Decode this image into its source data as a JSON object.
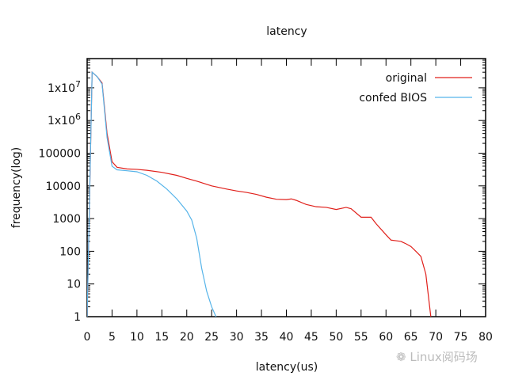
{
  "chart_data": {
    "type": "line",
    "title": "latency",
    "xlabel": "latency(us)",
    "ylabel": "frequency(log)",
    "xlim": [
      0,
      80
    ],
    "ylim": [
      1,
      100000000
    ],
    "yscale": "log",
    "grid": false,
    "legend_position": "top-right",
    "x_ticks": [
      "0",
      "5",
      "10",
      "15",
      "20",
      "25",
      "30",
      "35",
      "40",
      "45",
      "50",
      "55",
      "60",
      "65",
      "70",
      "75",
      "80"
    ],
    "y_ticks": [
      "1",
      "10",
      "100",
      "1000",
      "10000",
      "100000",
      "1x10^6",
      "1x10^7"
    ],
    "series": [
      {
        "name": "original",
        "color": "#e0201b",
        "x": [
          0,
          1,
          2,
          3,
          4,
          5,
          6,
          8,
          10,
          12,
          15,
          18,
          20,
          22,
          25,
          28,
          30,
          32,
          34,
          36,
          38,
          40,
          41,
          42,
          44,
          46,
          48,
          50,
          52,
          53,
          55,
          57,
          58,
          60,
          61,
          62,
          63,
          64,
          65,
          66,
          67,
          68,
          69
        ],
        "y": [
          1,
          30000000,
          22000000,
          14000000,
          400000,
          55000,
          37000,
          33000,
          32000,
          30000,
          26000,
          21000,
          17000,
          14000,
          10000,
          8000,
          7000,
          6300,
          5500,
          4500,
          3900,
          3800,
          4000,
          3600,
          2700,
          2300,
          2200,
          1900,
          2200,
          2000,
          1100,
          1100,
          700,
          320,
          220,
          210,
          200,
          170,
          140,
          100,
          70,
          20,
          1
        ]
      },
      {
        "name": "confed BIOS",
        "color": "#56b4e9",
        "x": [
          0,
          1,
          2,
          3,
          4,
          5,
          6,
          8,
          10,
          12,
          14,
          16,
          18,
          20,
          21,
          22,
          23,
          24,
          25,
          26
        ],
        "y": [
          1,
          30000000,
          22000000,
          13000000,
          300000,
          40000,
          31000,
          29000,
          27000,
          21000,
          14000,
          8000,
          4000,
          1700,
          900,
          250,
          30,
          6,
          2,
          0.9
        ]
      }
    ]
  },
  "legend": {
    "items": [
      "original",
      "confed BIOS"
    ]
  },
  "watermark": "Linux阅码场"
}
